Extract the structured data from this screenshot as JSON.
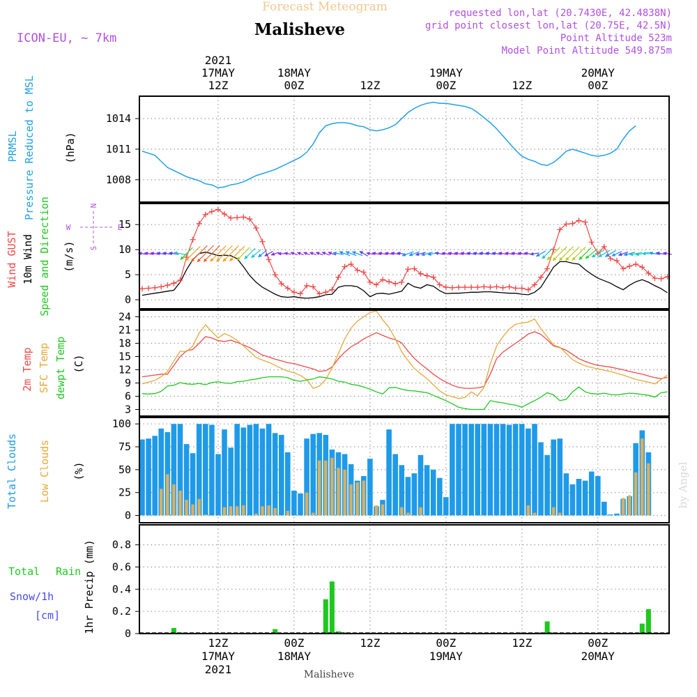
{
  "header": {
    "product": "Forecast Meteogram",
    "location": "Malisheve",
    "model": "ICON-EU, ~ 7km",
    "requested": "requested lon,lat (20.7430E, 42.4838N)",
    "gridpoint": "grid point closest lon,lat (20.75E, 42.5N)",
    "point_alt": "Point Altitude 523m",
    "model_alt": "Model Point Altitude 549.875m"
  },
  "footer": {
    "location": "Malisheve",
    "credit": "by Angel"
  },
  "time_axis": {
    "top_year": "2021",
    "ticks": [
      {
        "t": 12,
        "lines": [
          "17MAY",
          "12Z"
        ]
      },
      {
        "t": 24,
        "lines": [
          "18MAY",
          "00Z"
        ]
      },
      {
        "t": 36,
        "lines": [
          "12Z"
        ]
      },
      {
        "t": 48,
        "lines": [
          "19MAY",
          "00Z"
        ]
      },
      {
        "t": 60,
        "lines": [
          "12Z"
        ]
      },
      {
        "t": 72,
        "lines": [
          "20MAY",
          "00Z"
        ]
      }
    ],
    "bottom_ticks": [
      {
        "t": 12,
        "lines": [
          "12Z",
          "17MAY",
          "2021"
        ]
      },
      {
        "t": 24,
        "lines": [
          "00Z",
          "18MAY"
        ]
      },
      {
        "t": 36,
        "lines": [
          "12Z"
        ]
      },
      {
        "t": 48,
        "lines": [
          "00Z",
          "19MAY"
        ]
      },
      {
        "t": 60,
        "lines": [
          "12Z"
        ]
      },
      {
        "t": 72,
        "lines": [
          "00Z",
          "20MAY"
        ]
      }
    ]
  },
  "colors": {
    "pressure": "#1fa0e6",
    "gust": "#f04848",
    "wind": "#000000",
    "temp": "#f04848",
    "sfc": "#e6a838",
    "dewpt": "#1ec81e",
    "total_clouds": "#1f9ae8",
    "low_clouds": "#d9b060",
    "rain": "#1ec81e",
    "snow": "#4848f0",
    "purple": "#b050e0",
    "title_orange": "#f0c890"
  },
  "chart_data": [
    {
      "type": "line",
      "panel": "pressure",
      "ylabels": [
        "PRMSL",
        "Pressure Reduced to MSL"
      ],
      "unit": "(hPa)",
      "yticks": [
        1008,
        1011,
        1014
      ],
      "ylim": [
        1005.8,
        1016.2
      ],
      "series": [
        {
          "start": 0,
          "values": [
            1010.8,
            1010.6,
            1010.4,
            1009.8,
            1009.2,
            1008.9,
            1008.6,
            1008.3,
            1008.1,
            1007.9,
            1007.6,
            1007.5,
            1007.2,
            1007.3,
            1007.5,
            1007.6,
            1007.8,
            1008.1,
            1008.4,
            1008.6,
            1008.8,
            1009.0,
            1009.3,
            1009.6,
            1009.9,
            1010.2,
            1010.7,
            1011.5,
            1012.6,
            1013.3,
            1013.5,
            1013.6,
            1013.6,
            1013.5,
            1013.3,
            1013.2,
            1012.9,
            1012.8,
            1012.9,
            1013.1,
            1013.4,
            1014.0,
            1014.6,
            1015.0,
            1015.3,
            1015.5,
            1015.6,
            1015.5,
            1015.5,
            1015.4,
            1015.3,
            1015.2,
            1015.0,
            1014.6,
            1014.1,
            1013.6,
            1013.0,
            1012.3,
            1011.6,
            1010.9,
            1010.3,
            1010.0,
            1009.8,
            1009.5,
            1009.4,
            1009.7,
            1010.2,
            1010.8,
            1011.0,
            1010.8,
            1010.6,
            1010.4,
            1010.3,
            1010.4,
            1010.6,
            1011.0,
            1012.0,
            1012.8,
            1013.3
          ]
        }
      ]
    },
    {
      "type": "line",
      "panel": "wind",
      "ylabels": [
        "Wind GUST",
        "10m Wind",
        "Speed and Direction"
      ],
      "unit": "(m/s)",
      "compass": {
        "n": "N",
        "s": "S",
        "w": "W",
        "e": "E"
      },
      "yticks": [
        0,
        5,
        10,
        15
      ],
      "ylim": [
        -1.8,
        19.2
      ],
      "series": [
        {
          "name": "Wind GUST",
          "start": 0,
          "values": [
            2.2,
            2.3,
            2.4,
            2.6,
            2.9,
            3.3,
            3.9,
            8.5,
            12.0,
            15.2,
            17.0,
            17.6,
            18.0,
            17.1,
            16.3,
            16.4,
            16.5,
            16.1,
            14.3,
            11.6,
            8.0,
            5.0,
            3.2,
            2.3,
            1.5,
            1.2,
            2.8,
            2.6,
            1.2,
            1.5,
            2.0,
            4.5,
            6.6,
            7.1,
            5.9,
            5.5,
            3.5,
            3.0,
            4.0,
            3.6,
            3.2,
            3.5,
            6.1,
            6.2,
            5.2,
            4.8,
            4.5,
            3.0,
            2.5,
            2.4,
            2.5,
            2.5,
            2.5,
            2.5,
            2.6,
            2.5,
            2.6,
            2.4,
            2.6,
            2.3,
            2.3,
            2.0,
            3.0,
            4.5,
            6.2,
            10.0,
            14.0,
            15.1,
            15.2,
            15.8,
            15.5,
            11.5,
            9.2,
            10.6,
            8.2,
            7.8,
            6.2,
            6.7,
            7.1,
            6.5,
            5.3,
            4.3,
            4.2,
            4.6
          ]
        },
        {
          "name": "10m Wind",
          "start": 0,
          "values": [
            0.9,
            1.1,
            1.3,
            1.5,
            1.7,
            1.9,
            3.5,
            6.0,
            8.0,
            9.2,
            9.5,
            9.2,
            8.8,
            8.9,
            8.8,
            8.2,
            6.6,
            4.8,
            3.5,
            2.5,
            1.8,
            1.1,
            0.6,
            0.5,
            0.6,
            0.4,
            0.3,
            0.4,
            0.6,
            1.0,
            1.1,
            2.5,
            2.8,
            2.8,
            2.6,
            1.8,
            0.6,
            1.2,
            1.3,
            1.1,
            1.4,
            1.7,
            3.3,
            2.6,
            2.3,
            3.0,
            2.7,
            1.8,
            1.2,
            1.3,
            1.3,
            1.4,
            1.5,
            1.5,
            1.6,
            1.6,
            1.5,
            1.4,
            1.3,
            1.3,
            1.1,
            1.0,
            1.5,
            2.5,
            4.5,
            6.5,
            7.6,
            7.6,
            7.3,
            7.1,
            6.0,
            5.1,
            4.3,
            3.8,
            3.3,
            2.6,
            2.0,
            2.9,
            3.6,
            4.0,
            3.5,
            2.8,
            2.2,
            1.4
          ]
        }
      ],
      "arrows": {
        "start": 0,
        "step": 1,
        "dir_deg": [
          100,
          100,
          100,
          100,
          100,
          100,
          100,
          45,
          45,
          45,
          45,
          45,
          45,
          45,
          45,
          45,
          45,
          45,
          50,
          50,
          60,
          70,
          90,
          100,
          110,
          110,
          110,
          110,
          110,
          110,
          110,
          100,
          110,
          110,
          110,
          120,
          100,
          100,
          100,
          100,
          100,
          100,
          70,
          70,
          75,
          75,
          80,
          100,
          100,
          100,
          100,
          100,
          100,
          100,
          100,
          100,
          100,
          100,
          100,
          100,
          100,
          100,
          80,
          60,
          45,
          45,
          45,
          45,
          45,
          45,
          45,
          50,
          60,
          60,
          60,
          65,
          70,
          75,
          80,
          80,
          90,
          100,
          100,
          100
        ],
        "speed": [
          0.9,
          1.1,
          1.3,
          1.5,
          1.7,
          1.9,
          3.5,
          6.0,
          8.0,
          9.2,
          9.5,
          9.2,
          8.8,
          8.9,
          8.8,
          8.2,
          6.6,
          4.8,
          3.5,
          2.5,
          1.8,
          1.1,
          0.6,
          0.5,
          0.6,
          0.4,
          0.3,
          0.4,
          0.6,
          1.0,
          1.1,
          2.5,
          2.8,
          2.8,
          2.6,
          1.8,
          0.6,
          1.2,
          1.3,
          1.1,
          1.4,
          1.7,
          3.3,
          2.6,
          2.3,
          3.0,
          2.7,
          1.8,
          1.2,
          1.3,
          1.3,
          1.4,
          1.5,
          1.5,
          1.6,
          1.6,
          1.5,
          1.4,
          1.3,
          1.3,
          1.1,
          1.0,
          1.5,
          2.5,
          4.5,
          6.5,
          7.6,
          7.6,
          7.3,
          7.1,
          6.0,
          5.1,
          4.3,
          3.8,
          3.3,
          2.6,
          2.0,
          2.9,
          3.6,
          4.0,
          3.5,
          2.8,
          2.2,
          1.4
        ]
      }
    },
    {
      "type": "line",
      "panel": "temperature",
      "ylabels": [
        "2m Temp",
        "SFC Temp",
        "dewpt Temp"
      ],
      "unit": "(C)",
      "yticks": [
        3,
        6,
        9,
        12,
        15,
        18,
        21,
        24
      ],
      "ylim": [
        1.5,
        25.5
      ],
      "series": [
        {
          "name": "2m Temp",
          "start": 0,
          "values": [
            10.4,
            10.6,
            10.8,
            11.0,
            11.0,
            13.0,
            15.0,
            16.3,
            16.6,
            18.0,
            19.5,
            19.2,
            18.6,
            18.4,
            18.7,
            18.2,
            17.6,
            17.0,
            16.2,
            15.3,
            14.9,
            14.4,
            14.0,
            13.6,
            13.4,
            13.0,
            12.6,
            12.2,
            11.6,
            11.8,
            12.6,
            14.5,
            16.0,
            17.2,
            18.0,
            19.0,
            19.7,
            20.4,
            19.8,
            19.2,
            18.8,
            18.1,
            16.2,
            14.6,
            13.3,
            12.2,
            11.0,
            10.0,
            9.2,
            8.5,
            8.0,
            7.8,
            7.8,
            7.9,
            8.2,
            11.0,
            14.5,
            16.0,
            17.0,
            18.0,
            19.0,
            20.1,
            20.6,
            20.0,
            18.8,
            17.4,
            17.0,
            16.4,
            15.5,
            14.5,
            13.9,
            13.4,
            13.0,
            12.8,
            12.6,
            12.3,
            12.0,
            11.6,
            11.3,
            11.0,
            10.6,
            10.2,
            10.0,
            10.3
          ]
        },
        {
          "name": "SFC Temp",
          "start": 0,
          "values": [
            8.8,
            9.2,
            9.6,
            10.4,
            11.6,
            14.0,
            16.2,
            16.1,
            17.4,
            20.3,
            22.2,
            20.6,
            19.2,
            20.2,
            19.6,
            18.7,
            17.4,
            16.1,
            14.8,
            14.2,
            13.7,
            13.0,
            12.3,
            11.7,
            11.3,
            10.7,
            9.8,
            7.8,
            8.3,
            9.8,
            12.4,
            15.7,
            19.0,
            21.4,
            23.0,
            24.0,
            25.0,
            25.3,
            23.3,
            21.6,
            19.0,
            16.1,
            14.1,
            12.3,
            11.1,
            10.0,
            8.6,
            7.2,
            6.3,
            5.9,
            5.5,
            5.7,
            7.0,
            6.1,
            8.0,
            13.3,
            17.4,
            19.5,
            21.2,
            22.3,
            22.6,
            22.8,
            23.5,
            21.3,
            19.5,
            17.6,
            17.1,
            15.7,
            14.3,
            13.5,
            12.9,
            12.5,
            12.2,
            11.9,
            11.6,
            11.2,
            10.8,
            10.3,
            9.8,
            9.5,
            9.2,
            8.8,
            9.8,
            10.8
          ]
        },
        {
          "name": "dewpt Temp",
          "start": 0,
          "values": [
            6.6,
            6.5,
            6.6,
            7.1,
            8.3,
            8.5,
            9.1,
            8.8,
            8.7,
            8.9,
            8.6,
            9.1,
            9.3,
            9.0,
            8.9,
            9.3,
            9.4,
            9.7,
            9.9,
            10.2,
            10.4,
            10.4,
            10.4,
            10.2,
            9.6,
            9.4,
            9.7,
            9.9,
            10.4,
            10.2,
            9.9,
            9.4,
            9.2,
            8.7,
            8.5,
            8.1,
            7.6,
            7.0,
            6.5,
            7.9,
            8.0,
            7.6,
            7.3,
            7.2,
            7.0,
            6.8,
            6.2,
            5.6,
            5.0,
            4.3,
            3.5,
            3.2,
            3.0,
            3.0,
            3.0,
            5.0,
            4.7,
            4.5,
            4.2,
            4.0,
            3.5,
            4.3,
            5.0,
            5.8,
            6.8,
            6.3,
            5.0,
            5.3,
            7.0,
            8.1,
            7.0,
            6.6,
            6.5,
            6.7,
            6.4,
            6.3,
            6.5,
            6.7,
            6.6,
            6.4,
            6.2,
            5.8,
            6.8,
            7.0
          ]
        }
      ]
    },
    {
      "type": "bar",
      "panel": "clouds",
      "ylabels": [
        "Total Clouds",
        "Low Clouds"
      ],
      "unit": "(%)",
      "yticks": [
        0,
        25,
        50,
        75,
        100
      ],
      "ylim": [
        -8,
        107
      ],
      "series": [
        {
          "name": "Total Clouds",
          "start": 0,
          "values": [
            83,
            84,
            87,
            95,
            91,
            100,
            100,
            78,
            68,
            100,
            100,
            99,
            67,
            94,
            74,
            100,
            96,
            99,
            100,
            95,
            100,
            90,
            88,
            69,
            27,
            24,
            84,
            89,
            90,
            88,
            72,
            69,
            67,
            56,
            38,
            43,
            62,
            10,
            17,
            94,
            67,
            55,
            42,
            46,
            66,
            55,
            50,
            41,
            20,
            100,
            100,
            100,
            100,
            100,
            100,
            100,
            100,
            100,
            99,
            100,
            100,
            95,
            100,
            80,
            66,
            83,
            84,
            46,
            34,
            40,
            38,
            48,
            43,
            15,
            1,
            2,
            18,
            21,
            79,
            93,
            69
          ]
        },
        {
          "name": "Low Clouds",
          "start": 0,
          "values": [
            0,
            0,
            0,
            29,
            45,
            34,
            27,
            17,
            12,
            18,
            1,
            0,
            0,
            9,
            10,
            10,
            11,
            0,
            2,
            10,
            11,
            8,
            0,
            5,
            0,
            0,
            25,
            3,
            60,
            60,
            63,
            52,
            50,
            34,
            36,
            38,
            0,
            11,
            12,
            0,
            0,
            9,
            3,
            0,
            9,
            0,
            0,
            0,
            0,
            0,
            0,
            0,
            0,
            0,
            0,
            0,
            0,
            0,
            0,
            0,
            0,
            11,
            3,
            0,
            0,
            9,
            3,
            0,
            0,
            0,
            0,
            0,
            0,
            0,
            0,
            0,
            19,
            22,
            47,
            84,
            57
          ]
        }
      ]
    },
    {
      "type": "bar",
      "panel": "precip",
      "ylabel": "1hr Precip (mm)",
      "legend": {
        "total": "Total",
        "rain": "Rain",
        "snow": "Snow/1h",
        "cm": "[cm]"
      },
      "yticks": [
        0,
        0.2,
        0.4,
        0.6,
        0.8
      ],
      "ylim": [
        0,
        0.98
      ],
      "series": [
        {
          "name": "Rain",
          "start": 0,
          "values": [
            0,
            0,
            0,
            0,
            0,
            0.05,
            0.01,
            0,
            0,
            0,
            0,
            0,
            0,
            0,
            0,
            0,
            0,
            0,
            0,
            0,
            0,
            0.04,
            0,
            0,
            0,
            0,
            0,
            0,
            0,
            0.31,
            0.47,
            0.02,
            0.01,
            0,
            0,
            0,
            0,
            0,
            0,
            0,
            0,
            0,
            0,
            0,
            0,
            0,
            0,
            0,
            0,
            0,
            0,
            0,
            0,
            0,
            0,
            0,
            0,
            0,
            0,
            0,
            0.01,
            0,
            0,
            0.01,
            0.11,
            0.01,
            0,
            0,
            0,
            0,
            0,
            0,
            0,
            0,
            0,
            0,
            0,
            0,
            0,
            0.09,
            0.22
          ]
        }
      ]
    }
  ]
}
